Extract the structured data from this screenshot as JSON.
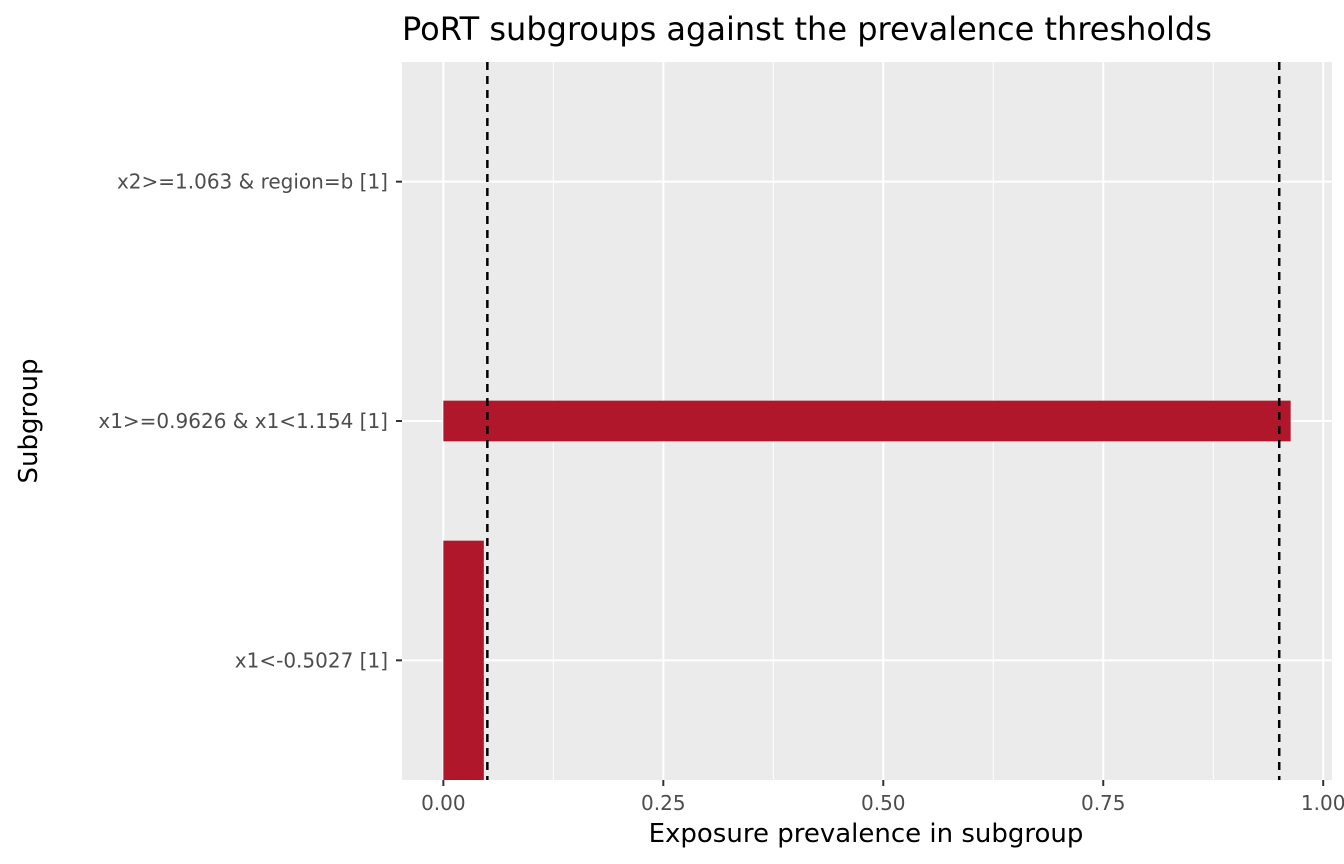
{
  "chart_data": {
    "type": "bar",
    "orientation": "horizontal",
    "title": "PoRT subgroups against the prevalence thresholds",
    "xlabel": "Exposure prevalence in subgroup",
    "ylabel": "Subgroup",
    "categories": [
      "x2>=1.063 & region=b [1]",
      "x1>=0.9626 & x1<1.154 [1]",
      "x1<-0.5027 [1]"
    ],
    "series": [
      {
        "values": [
          0.0,
          0.963,
          0.046
        ],
        "color": "#b0172a"
      }
    ],
    "bar_variants": [
      {
        "category": "x2>=1.063 & region=b [1]",
        "value": 0.0,
        "bar_width": 0.0
      },
      {
        "category": "x1>=0.9626 & x1<1.154 [1]",
        "value": 0.963,
        "bar_width": 0.17
      },
      {
        "category": "x1<-0.5027 [1]",
        "value": 0.046,
        "bar_width": 1.0
      }
    ],
    "thresholds": [
      0.05,
      0.95
    ],
    "threshold_style": "dashed",
    "xlim": [
      -0.047,
      1.01
    ],
    "x_ticks": [
      0.0,
      0.25,
      0.5,
      0.75,
      1.0
    ],
    "x_tick_labels": [
      "0.00",
      "0.25",
      "0.50",
      "0.75",
      "1.00"
    ],
    "grid": true,
    "panel_background": "#ebebeb",
    "grid_color": "#ffffff"
  }
}
